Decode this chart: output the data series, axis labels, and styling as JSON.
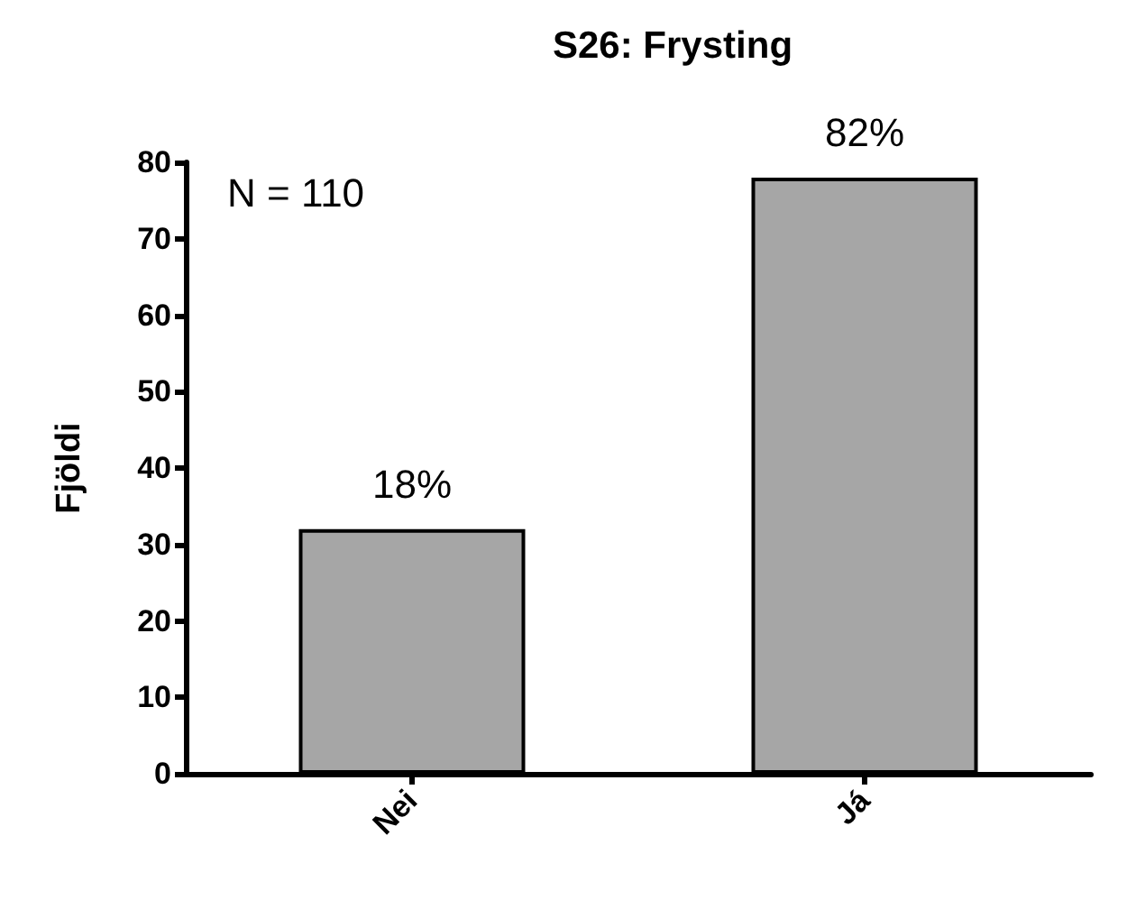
{
  "chart_data": {
    "type": "bar",
    "title": "S26: Frysting",
    "ylabel": "Fjöldi",
    "categories": [
      "Nei",
      "Já"
    ],
    "values": [
      32,
      78
    ],
    "color": "#a6a6a6",
    "ylim": [
      0,
      80
    ],
    "yticks": [
      0,
      10,
      20,
      30,
      40,
      50,
      60,
      70,
      80
    ],
    "grid": false,
    "annotations": [
      "N = 110",
      {
        "text": "18%",
        "x": "Nei",
        "y": 32
      },
      {
        "text": "82%",
        "x": "Já",
        "y": 78
      }
    ]
  }
}
